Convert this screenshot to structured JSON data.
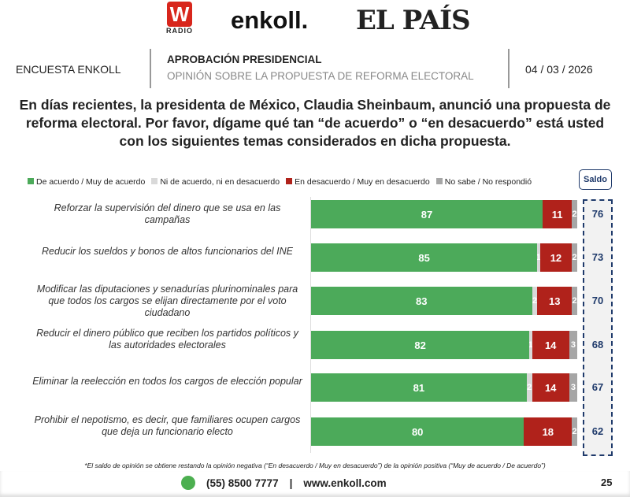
{
  "logos": {
    "wradio": "W",
    "wradio_sub": "RADIO",
    "enkoll": "enkoll.",
    "elpais": "EL PAÍS"
  },
  "header": {
    "left": "ENCUESTA ENKOLL",
    "title": "APROBACIÓN PRESIDENCIAL",
    "subtitle": "OPINIÓN SOBRE LA PROPUESTA DE REFORMA ELECTORAL",
    "date": "04 / 03 / 2026"
  },
  "question": "En días recientes, la presidenta de México, Claudia Sheinbaum, anunció una propuesta de reforma electoral. Por favor, dígame qué tan “de acuerdo” o “en desacuerdo” está usted con los siguientes temas considerados en dicha propuesta.",
  "colors": {
    "agree": "#4caa5a",
    "neutral": "#d9d9d9",
    "disagree": "#b0221b",
    "dk": "#a6a6a6",
    "saldo": "#1f3a6b"
  },
  "chart_data": {
    "type": "bar",
    "stacked": true,
    "orientation": "horizontal",
    "xlim": [
      0,
      100
    ],
    "legend": [
      "De acuerdo / Muy de acuerdo",
      "Ni de acuerdo, ni en desacuerdo",
      "En desacuerdo / Muy en desacuerdo",
      "No sabe / No respondió"
    ],
    "saldo_label": "Saldo",
    "categories": [
      "Reforzar la supervisión del dinero que se usa en las campañas",
      "Reducir los sueldos y bonos de altos funcionarios del INE",
      "Modificar las diputaciones y senadurías plurinominales para que todos los cargos se elijan directamente por el voto ciudadano",
      "Reducir el dinero público que reciben los partidos políticos y las autoridades electorales",
      "Eliminar la reelección en todos los cargos de elección popular",
      "Prohibir el nepotismo, es decir, que familiares ocupen cargos que deja un funcionario electo"
    ],
    "series": [
      {
        "name": "De acuerdo / Muy de acuerdo",
        "values": [
          87,
          85,
          83,
          82,
          81,
          80
        ]
      },
      {
        "name": "Ni de acuerdo, ni en desacuerdo",
        "values": [
          0,
          1,
          2,
          1,
          2,
          0
        ]
      },
      {
        "name": "En desacuerdo / Muy en desacuerdo",
        "values": [
          11,
          12,
          13,
          14,
          14,
          18
        ]
      },
      {
        "name": "No sabe / No respondió",
        "values": [
          2,
          2,
          2,
          3,
          3,
          2
        ]
      }
    ],
    "saldo": [
      76,
      73,
      70,
      68,
      67,
      62
    ]
  },
  "footnote": "*El saldo de opinión se obtiene restando la opinión negativa (“En desacuerdo / Muy en desacuerdo”) de la opinión positiva (“Muy de acuerdo / De acuerdo”)",
  "footer": {
    "phone": "(55) 8500 7777",
    "sep": "|",
    "web": "www.enkoll.com",
    "page": "25"
  }
}
